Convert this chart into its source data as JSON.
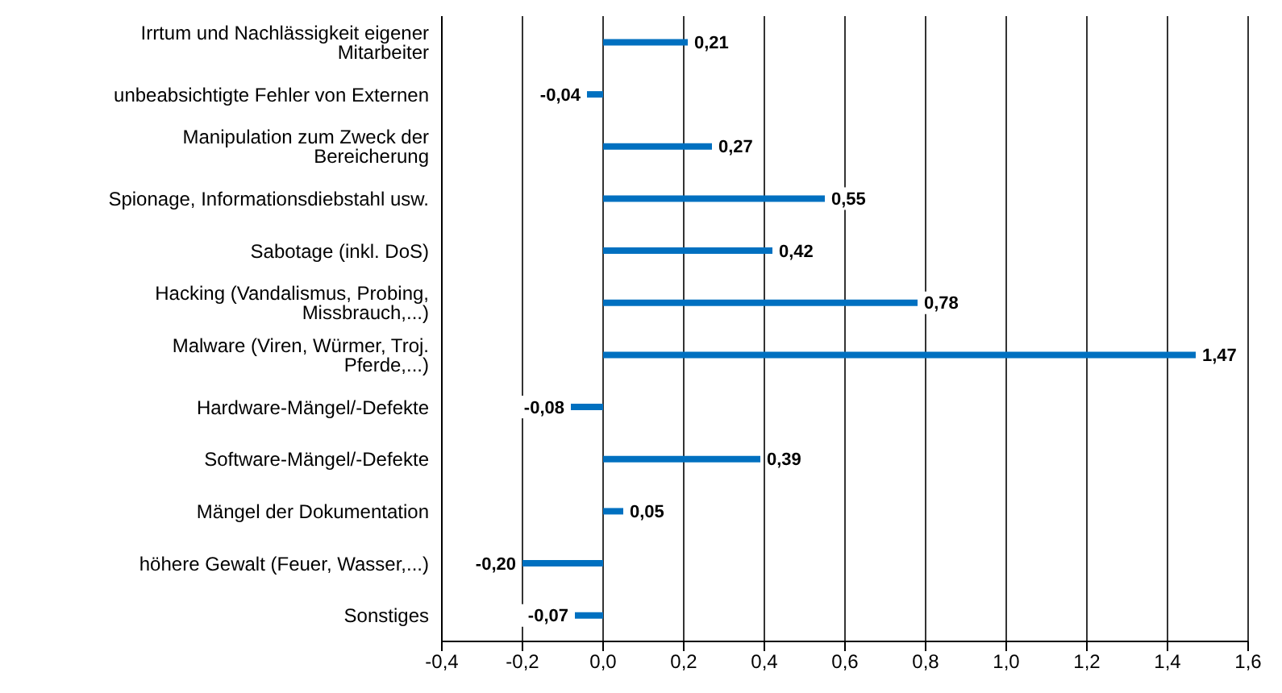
{
  "chart_data": {
    "type": "bar",
    "orientation": "horizontal",
    "categories": [
      "Irrtum und Nachlässigkeit eigener Mitarbeiter",
      "unbeabsichtigte Fehler von Externen",
      "Manipulation zum Zweck der Bereicherung",
      "Spionage, Informationsdiebstahl usw.",
      "Sabotage (inkl. DoS)",
      "Hacking (Vandalismus, Probing, Missbrauch,...)",
      "Malware (Viren, Würmer, Troj. Pferde,...)",
      "Hardware-Mängel/-Defekte",
      "Software-Mängel/-Defekte",
      "Mängel der Dokumentation",
      "höhere Gewalt (Feuer, Wasser,...)",
      "Sonstiges"
    ],
    "values": [
      0.21,
      -0.04,
      0.27,
      0.55,
      0.42,
      0.78,
      1.47,
      -0.08,
      0.39,
      0.05,
      -0.2,
      -0.07
    ],
    "value_labels": [
      "0,21",
      "-0,04",
      "0,27",
      "0,55",
      "0,42",
      "0,78",
      "1,47",
      "-0,08",
      "0,39",
      "0,05",
      "-0,20",
      "-0,07"
    ],
    "color": "#0070c0",
    "xlim": [
      -0.4,
      1.6
    ],
    "xticks": [
      {
        "value": -0.4,
        "label": "-0,4"
      },
      {
        "value": -0.2,
        "label": "-0,2"
      },
      {
        "value": 0,
        "label": "0,0"
      },
      {
        "value": 0.2,
        "label": "0,2"
      },
      {
        "value": 0.4,
        "label": "0,4"
      },
      {
        "value": 0.6,
        "label": "0,6"
      },
      {
        "value": 0.8,
        "label": "0,8"
      },
      {
        "value": 1.0,
        "label": "1,0"
      },
      {
        "value": 1.2,
        "label": "1,2"
      },
      {
        "value": 1.4,
        "label": "1,4"
      },
      {
        "value": 1.6,
        "label": "1,6"
      }
    ],
    "grid": "x"
  }
}
